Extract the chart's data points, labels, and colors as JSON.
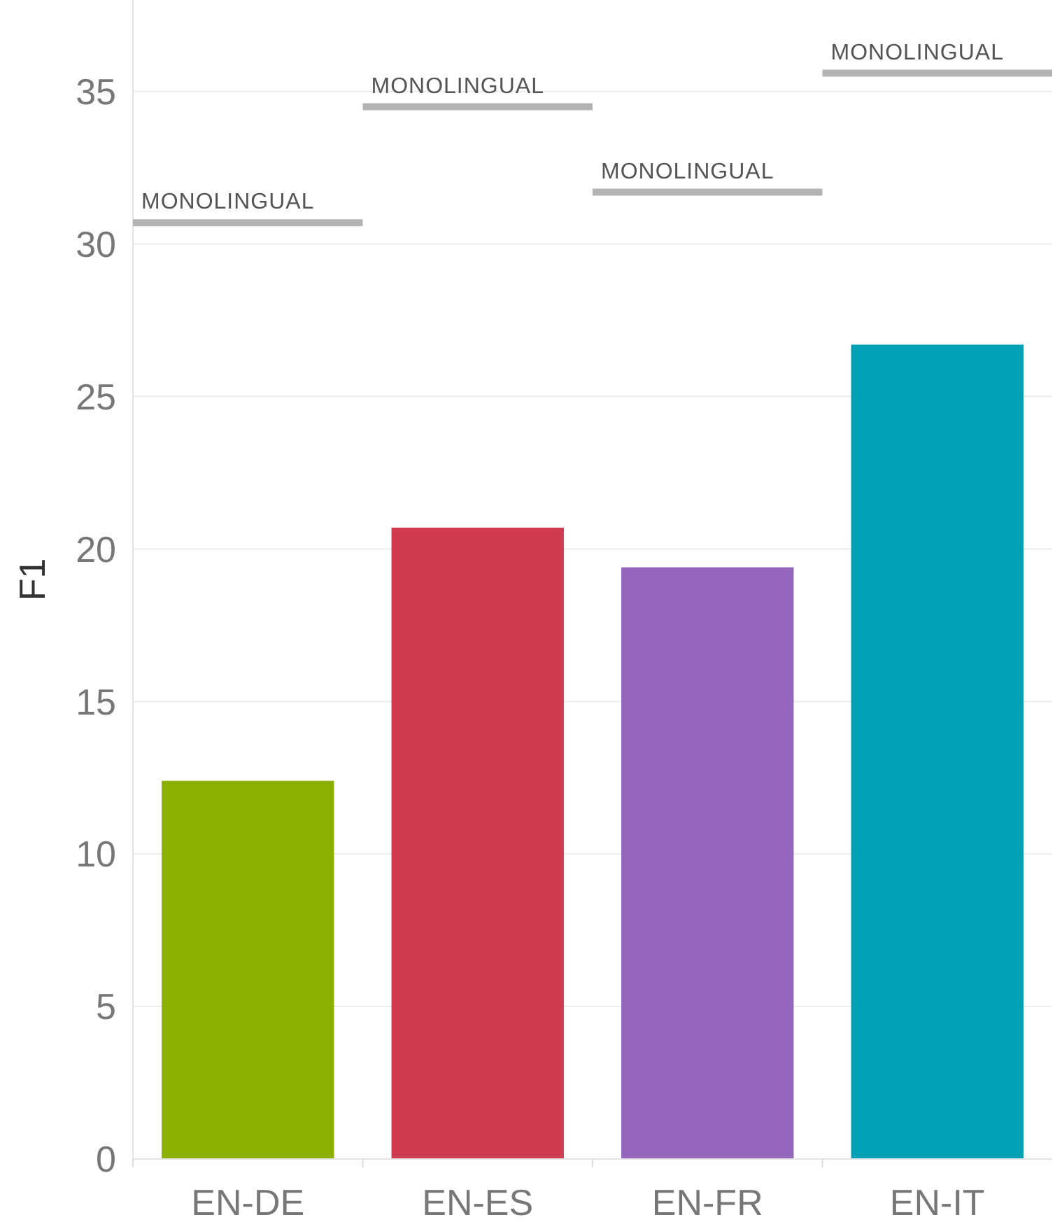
{
  "chart_data": {
    "type": "bar",
    "ylabel": "F1",
    "categories": [
      "EN-DE",
      "EN-ES",
      "EN-FR",
      "EN-IT"
    ],
    "series": [
      {
        "colors": [
          "#8db000",
          "#d13b50",
          "#9467bd",
          "#00a1b5"
        ],
        "values": [
          12.4,
          20.7,
          19.4,
          26.7
        ]
      }
    ],
    "ref_lines": [
      {
        "axis": "y",
        "value": 30.7,
        "label": "MONOLINGUAL",
        "color": "#b3b3b3"
      },
      {
        "axis": "y",
        "value": 34.5,
        "label": "MONOLINGUAL",
        "color": "#b3b3b3"
      },
      {
        "axis": "y",
        "value": 31.7,
        "label": "MONOLINGUAL",
        "color": "#b3b3b3"
      },
      {
        "axis": "y",
        "value": 35.6,
        "label": "MONOLINGUAL",
        "color": "#b3b3b3"
      }
    ],
    "ylim": [
      0,
      38
    ],
    "yticks": [
      0,
      5,
      10,
      15,
      20,
      25,
      30,
      35
    ],
    "grid": "y"
  }
}
